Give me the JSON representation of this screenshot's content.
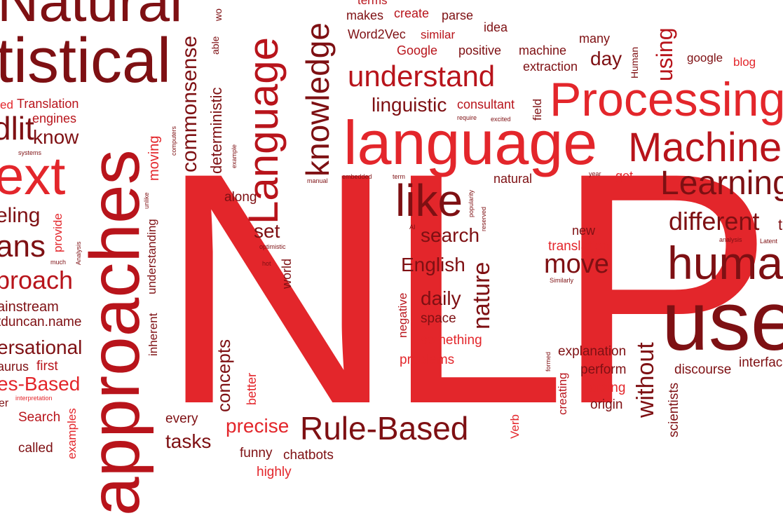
{
  "colors": {
    "bright": "#e3262b",
    "medium": "#b8141b",
    "dark": "#7e1013",
    "background": "#ffffff"
  },
  "words": {
    "nlp": "NLP",
    "natural_big": "Natural",
    "istical": "tistical",
    "approaches": "approaches",
    "language_vert": "Language",
    "knowledge": "knowledge",
    "language": "language",
    "processing": "Processing",
    "machine_big": "Machine",
    "learning": "Learning",
    "understand": "understand",
    "like": "like",
    "rule_based": "Rule-Based",
    "use": "use",
    "human": "huma",
    "different": "different",
    "ext": "ext",
    "roach": "proach",
    "commonsense": "commonsense",
    "deterministic": "deterministic",
    "moving": "moving",
    "linguistic": "linguistic",
    "consultant": "consultant",
    "word2vec": "Word2Vec",
    "makes": "makes",
    "create": "create",
    "parse": "parse",
    "idea": "idea",
    "similar": "similar",
    "google_cap": "Google",
    "positive": "positive",
    "machine_small": "machine",
    "many": "many",
    "day": "day",
    "using": "using",
    "google": "google",
    "blog": "blog",
    "extraction": "extraction",
    "human_small": "Human",
    "field": "field",
    "translation_cap": "Translation",
    "engines": "engines",
    "know": "know",
    "systems": "systems",
    "dlit": "dlit",
    "ed": "ed",
    "eling": "eling",
    "ans": "ans",
    "provide": "provide",
    "analysis": "Analysis",
    "much": "much",
    "mainstream": "ainstream",
    "duncan": "tduncan.name",
    "conversational": "ersational",
    "thesaurus": "aurus",
    "first": "first",
    "es_based": "es-Based",
    "interpretation": "interpretation",
    "er": "er",
    "search_small": "Search",
    "called": "called",
    "examples": "examples",
    "inherent": "inherent",
    "understanding": "understanding",
    "unlike": "unlike",
    "computers": "computers",
    "example": "example",
    "along": "along",
    "set": "set",
    "optimistic": "optimistic",
    "hot": "hot",
    "world": "world",
    "concepts": "concepts",
    "better": "better",
    "every": "every",
    "tasks": "tasks",
    "precise": "precise",
    "funny": "funny",
    "chatbots": "chatbots",
    "highly": "highly",
    "search": "search",
    "ai": "AI",
    "english": "English",
    "nature": "nature",
    "negative": "negative",
    "daily": "daily",
    "space": "space",
    "something": "something",
    "problems": "problems",
    "popularity": "popularity",
    "reserved": "reserved",
    "manual": "manual",
    "embedded": "embedded",
    "term": "term",
    "terms": "terms",
    "natural_small": "natural",
    "require": "require",
    "excited": "excited",
    "year": "year",
    "get": "get",
    "new": "new",
    "translation": "translation",
    "move": "move",
    "similarly": "Similarly",
    "verb": "Verb",
    "creating": "creating",
    "formed": "formed",
    "explanation": "explanation",
    "perform": "perform",
    "parsing": "Parsing",
    "origin": "origin",
    "without": "without",
    "scientists": "scientists",
    "discourse": "discourse",
    "interface": "interfac",
    "analysis_small": "analysis",
    "latent": "Latent",
    "t_edge": "t",
    "able": "able",
    "wo": "wo"
  }
}
